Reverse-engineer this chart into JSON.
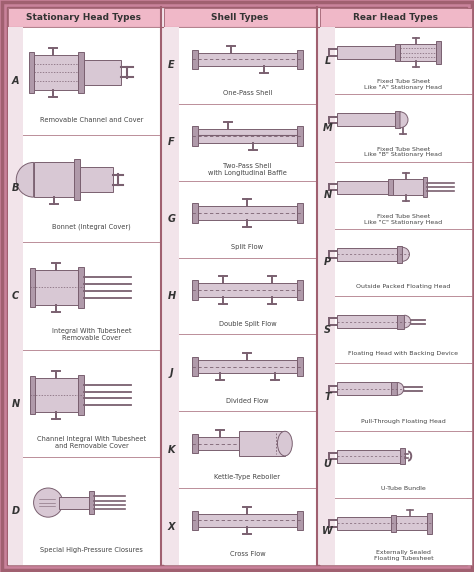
{
  "bg_outer": "#c9829b",
  "bg_inner": "#f2e4ea",
  "bg_header": "#f0b8c8",
  "bg_cell_white": "#ffffff",
  "bg_letter_strip": "#f2e4ea",
  "border_color": "#a06070",
  "text_color": "#333333",
  "label_color": "#444444",
  "dc": "#b09aaa",
  "dl": "#d8c8d4",
  "dd": "#7a6070",
  "col1_header": "Stationary Head Types",
  "col2_header": "Shell Types",
  "col3_header": "Rear Head Types",
  "col1_items": [
    {
      "letter": "A",
      "label": "Removable Channel and Cover"
    },
    {
      "letter": "B",
      "label": "Bonnet (Integral Cover)"
    },
    {
      "letter": "C",
      "label": "Integral With Tubesheet\nRemovable Cover"
    },
    {
      "letter": "N",
      "label": "Channel Integral With Tubesheet\nand Removable Cover"
    },
    {
      "letter": "D",
      "label": "Special High-Pressure Closures"
    }
  ],
  "col2_items": [
    {
      "letter": "E",
      "label": "One-Pass Shell"
    },
    {
      "letter": "F",
      "label": "Two-Pass Shell\nwith Longitudinal Baffle"
    },
    {
      "letter": "G",
      "label": "Split Flow"
    },
    {
      "letter": "H",
      "label": "Double Split Flow"
    },
    {
      "letter": "J",
      "label": "Divided Flow"
    },
    {
      "letter": "K",
      "label": "Kettle-Type Reboiler"
    },
    {
      "letter": "X",
      "label": "Cross Flow"
    }
  ],
  "col3_items": [
    {
      "letter": "L",
      "label": "Fixed Tube Sheet\nLike \"A\" Stationary Head"
    },
    {
      "letter": "M",
      "label": "Fixed Tube Sheet\nLike \"B\" Stationary Head"
    },
    {
      "letter": "N",
      "label": "Fixed Tube Sheet\nLike \"C\" Stationary Head"
    },
    {
      "letter": "P",
      "label": "Outside Packed Floating Head"
    },
    {
      "letter": "S",
      "label": "Floating Head with Backing Device"
    },
    {
      "letter": "T",
      "label": "Pull-Through Floating Head"
    },
    {
      "letter": "U",
      "label": "U-Tube Bundle"
    },
    {
      "letter": "W",
      "label": "Externally Sealed\nFloating Tubesheet"
    }
  ]
}
